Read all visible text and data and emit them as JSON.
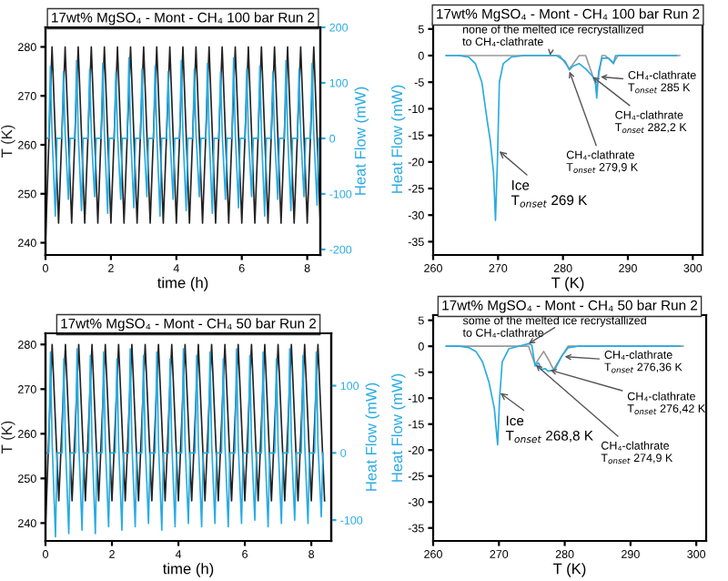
{
  "chart_data": [
    {
      "type": "line",
      "title": "17wt% MgSO₄ - Mont - CH₄ 100 bar Run 2",
      "xlabel": "time (h)",
      "ylabel": "T (K)",
      "y2label": "Heat Flow (mW)",
      "xlim": [
        0,
        8.4
      ],
      "xticks": [
        0,
        2,
        4,
        6,
        8
      ],
      "ylim": [
        237.5,
        284
      ],
      "yticks": [
        240,
        250,
        260,
        270,
        280
      ],
      "y2lim": [
        -210,
        200
      ],
      "y2ticks": [
        -200,
        -100,
        0,
        100,
        200
      ],
      "grid": false,
      "legend": false,
      "series": [
        {
          "color": "#222222",
          "x": [
            0,
            0.2,
            0.4,
            0.6,
            0.8,
            1.0,
            1.2,
            1.4,
            1.6,
            1.8,
            2.0,
            2.2,
            2.4,
            2.6,
            2.8,
            3.0,
            3.2,
            3.4,
            3.6,
            3.8,
            4.0,
            4.2,
            4.4,
            4.6,
            4.8,
            5.0,
            5.2,
            5.4,
            5.6,
            5.8,
            6.0,
            6.2,
            6.4,
            6.6,
            6.8,
            7.0,
            7.2,
            7.4,
            7.6,
            7.8,
            8.0,
            8.2,
            8.4
          ],
          "values": [
            240,
            280,
            244,
            280,
            244,
            280,
            244,
            280,
            244,
            280,
            244,
            280,
            244,
            280,
            244,
            280,
            244,
            280,
            244,
            280,
            244,
            280,
            244,
            280,
            244,
            280,
            244,
            280,
            244,
            280,
            244,
            280,
            244,
            280,
            244,
            280,
            244,
            280,
            244,
            280,
            244,
            280,
            244
          ]
        },
        {
          "color": "#29abe2",
          "axis": "y2",
          "x": [
            0,
            0.1,
            0.15,
            0.2,
            0.3,
            0.35,
            0.5,
            0.55,
            0.6,
            0.7,
            0.75,
            0.9,
            0.95,
            1.0,
            1.1,
            1.15,
            1.3,
            1.35,
            1.4,
            1.5,
            1.55,
            1.7,
            1.75,
            1.8,
            1.9,
            1.95,
            2.1,
            2.15,
            2.2,
            2.3,
            2.35,
            2.5,
            2.55,
            2.6,
            2.7,
            2.75,
            2.9,
            2.95,
            3.0,
            3.1,
            3.15,
            3.3,
            3.35,
            3.4,
            3.5,
            3.55,
            3.7,
            3.75,
            3.8,
            3.9,
            3.95,
            4.1,
            4.15,
            4.2,
            4.3,
            4.35,
            4.5,
            4.55,
            4.6,
            4.7,
            4.75,
            4.9,
            4.95,
            5.0,
            5.1,
            5.15,
            5.3,
            5.35,
            5.4,
            5.5,
            5.55,
            5.7,
            5.75,
            5.8,
            5.9,
            5.95,
            6.1,
            6.15,
            6.2,
            6.3,
            6.35,
            6.5,
            6.55,
            6.6,
            6.7,
            6.75,
            6.9,
            6.95,
            7.0,
            7.1,
            7.15,
            7.3,
            7.35,
            7.4,
            7.5,
            7.55,
            7.7,
            7.75,
            7.8,
            7.9,
            7.95,
            8.1,
            8.15,
            8.2,
            8.3,
            8.35
          ],
          "values": [
            0,
            0,
            130,
            10,
            -140,
            0,
            0,
            120,
            10,
            -110,
            0,
            0,
            140,
            10,
            -130,
            0,
            0,
            125,
            10,
            -105,
            0,
            0,
            135,
            10,
            -135,
            0,
            0,
            120,
            10,
            -110,
            0,
            0,
            145,
            10,
            -125,
            0,
            0,
            125,
            10,
            -105,
            0,
            0,
            130,
            10,
            -140,
            0,
            0,
            120,
            10,
            -110,
            0,
            0,
            140,
            10,
            -130,
            0,
            0,
            125,
            10,
            -105,
            0,
            0,
            135,
            10,
            -135,
            0,
            0,
            120,
            10,
            -110,
            0,
            0,
            145,
            10,
            -125,
            0,
            0,
            125,
            10,
            -105,
            0,
            0,
            130,
            10,
            -140,
            0,
            0,
            120,
            10,
            -110,
            0,
            0,
            140,
            10,
            -130,
            0,
            0,
            125,
            10,
            -105,
            0,
            0,
            135,
            10,
            -120,
            0
          ]
        }
      ]
    },
    {
      "type": "line",
      "title": "17wt% MgSO₄ - Mont - CH₄ 100 bar Run 2",
      "xlabel": "T (K)",
      "ylabel": "Heat Flow (mW)",
      "xlim": [
        260,
        301.5
      ],
      "xticks": [
        260,
        270,
        280,
        290,
        300
      ],
      "ylim": [
        -37.5,
        6
      ],
      "yticks": [
        5,
        0,
        -5,
        -10,
        -15,
        -20,
        -25,
        -30,
        -35
      ],
      "grid": false,
      "legend": false,
      "series": [
        {
          "color": "#999999",
          "x": [
            262,
            279.5,
            281,
            282.5,
            283.5,
            285.2,
            286,
            286.5,
            287.8,
            288.5,
            298
          ],
          "values": [
            0,
            0,
            -2.5,
            0,
            0,
            -6,
            0,
            0,
            -1.3,
            0,
            0
          ]
        },
        {
          "color": "#29abe2",
          "x": [
            262,
            264,
            265.5,
            266.5,
            267.5,
            268.3,
            268.8,
            269.3,
            269.6,
            269.9,
            270.2,
            270.8,
            272,
            274,
            279,
            280.3,
            281,
            281.5,
            282.5,
            283.5,
            284.5,
            285,
            285.2,
            285.5,
            286,
            287,
            287.8,
            288.1,
            290,
            297.5
          ],
          "values": [
            0,
            0,
            -0.3,
            -1.5,
            -5,
            -12,
            -16,
            -22,
            -31,
            -20,
            -5,
            -1.5,
            -0.3,
            0,
            0,
            -1,
            -2.7,
            -2,
            -1.5,
            -2.5,
            -3.8,
            -5,
            -8,
            -3,
            -0.5,
            -0.5,
            -1.5,
            0,
            0,
            0
          ]
        }
      ],
      "annotations": [
        {
          "text": "none of the melted ice recrystallized\nto CH₄-clathrate",
          "x": 278,
          "y": 0
        },
        {
          "text": "Ice\nT$_{onset}$ 269 K",
          "x": 270.2,
          "y": -18
        },
        {
          "text": "CH₄-clathrate\nT$_{onset}$ 279,9 K",
          "x": 281,
          "y": -3
        },
        {
          "text": "CH₄-clathrate\nT$_{onset}$ 282,2 K",
          "x": 284.6,
          "y": -4
        },
        {
          "text": "CH₄-clathrate\nT$_{onset}$ 285 K",
          "x": 285.8,
          "y": -4
        }
      ]
    },
    {
      "type": "line",
      "title": "17wt% MgSO₄ - Mont - CH₄ 50 bar Run 2",
      "xlabel": "time (h)",
      "ylabel": "T (K)",
      "y2label": "Heat Flow (mW)",
      "xlim": [
        0,
        8.6
      ],
      "xticks": [
        0,
        2,
        4,
        6,
        8
      ],
      "ylim": [
        236,
        282.5
      ],
      "yticks": [
        240,
        250,
        260,
        270,
        280
      ],
      "y2lim": [
        -131,
        178
      ],
      "y2ticks": [
        -100,
        0,
        100
      ],
      "grid": false,
      "legend": false,
      "series": [
        {
          "color": "#222222",
          "x": [
            0,
            0.2,
            0.4,
            0.6,
            0.8,
            1.0,
            1.2,
            1.4,
            1.6,
            1.8,
            2.0,
            2.2,
            2.4,
            2.6,
            2.8,
            3.0,
            3.2,
            3.4,
            3.6,
            3.8,
            4.0,
            4.2,
            4.4,
            4.6,
            4.8,
            5.0,
            5.2,
            5.4,
            5.6,
            5.8,
            6.0,
            6.2,
            6.4,
            6.6,
            6.8,
            7.0,
            7.2,
            7.4,
            7.6,
            7.8,
            8.0,
            8.2,
            8.4
          ],
          "values": [
            239,
            280,
            245,
            280,
            245,
            280,
            245,
            280,
            245,
            280,
            245,
            280,
            245,
            280,
            245,
            280,
            245,
            280,
            245,
            280,
            245,
            280,
            245,
            280,
            245,
            280,
            245,
            280,
            245,
            280,
            245,
            280,
            245,
            280,
            245,
            280,
            245,
            280,
            245,
            280,
            245,
            280,
            245
          ]
        },
        {
          "color": "#29abe2",
          "axis": "y2",
          "x": [
            0,
            0.1,
            0.15,
            0.2,
            0.3,
            0.35,
            0.5,
            0.55,
            0.6,
            0.7,
            0.75,
            0.9,
            0.95,
            1.0,
            1.1,
            1.15,
            1.3,
            1.35,
            1.4,
            1.5,
            1.55,
            1.7,
            1.75,
            1.8,
            1.9,
            1.95,
            2.1,
            2.15,
            2.2,
            2.3,
            2.35,
            2.5,
            2.55,
            2.6,
            2.7,
            2.75,
            2.9,
            2.95,
            3.0,
            3.1,
            3.15,
            3.3,
            3.35,
            3.4,
            3.5,
            3.55,
            3.7,
            3.75,
            3.8,
            3.9,
            3.95,
            4.1,
            4.15,
            4.2,
            4.3,
            4.35,
            4.5,
            4.55,
            4.6,
            4.7,
            4.75,
            4.9,
            4.95,
            5.0,
            5.1,
            5.15,
            5.3,
            5.35,
            5.4,
            5.5,
            5.55,
            5.7,
            5.75,
            5.8,
            5.9,
            5.95,
            6.1,
            6.15,
            6.2,
            6.3,
            6.35,
            6.5,
            6.55,
            6.6,
            6.7,
            6.75,
            6.9,
            6.95,
            7.0,
            7.1,
            7.15,
            7.3,
            7.35,
            7.4,
            7.5,
            7.55,
            7.7,
            7.75,
            7.8,
            7.9,
            7.95,
            8.1,
            8.15,
            8.2,
            8.3,
            8.35
          ],
          "values": [
            0,
            0,
            150,
            15,
            -125,
            0,
            0,
            140,
            15,
            -120,
            0,
            0,
            155,
            15,
            -115,
            0,
            0,
            145,
            15,
            -120,
            0,
            0,
            150,
            15,
            -110,
            0,
            0,
            140,
            15,
            -115,
            0,
            0,
            155,
            15,
            -110,
            0,
            0,
            145,
            15,
            -105,
            0,
            0,
            150,
            15,
            -115,
            0,
            0,
            140,
            15,
            -110,
            0,
            0,
            155,
            15,
            -105,
            0,
            0,
            145,
            15,
            -110,
            0,
            0,
            150,
            15,
            -105,
            0,
            0,
            140,
            15,
            -110,
            0,
            0,
            155,
            15,
            -105,
            0,
            0,
            145,
            15,
            -100,
            0,
            0,
            150,
            15,
            -110,
            0,
            0,
            140,
            15,
            -105,
            0,
            0,
            155,
            15,
            -100,
            0,
            0,
            145,
            15,
            -105,
            0,
            0,
            150,
            15,
            -95,
            0
          ]
        }
      ]
    },
    {
      "type": "line",
      "title": "17wt% MgSO₄ - Mont - CH₄ 50 bar Run 2",
      "xlabel": "T (K)",
      "ylabel": "Heat Flow (mW)",
      "xlim": [
        260,
        301.5
      ],
      "xticks": [
        260,
        270,
        280,
        290,
        300
      ],
      "ylim": [
        -37.5,
        6
      ],
      "yticks": [
        5,
        0,
        -5,
        -10,
        -15,
        -20,
        -25,
        -30,
        -35
      ],
      "grid": false,
      "legend": false,
      "series": [
        {
          "color": "#999999",
          "x": [
            262,
            274.5,
            275.5,
            276.8,
            277.5,
            278.3,
            279.5,
            280.5,
            298
          ],
          "values": [
            0,
            0,
            -3.5,
            -1,
            -2.5,
            -4.5,
            -2,
            0,
            0
          ]
        },
        {
          "color": "#29abe2",
          "x": [
            262,
            264,
            265.5,
            266.5,
            267.5,
            268.5,
            269.3,
            269.8,
            270.1,
            270.5,
            271.5,
            273,
            274.5,
            275,
            275.5,
            276,
            276.5,
            277,
            277.5,
            278.5,
            279.5,
            280.5,
            282,
            297.5
          ],
          "values": [
            0,
            0,
            -0.3,
            -1,
            -3,
            -7,
            -12,
            -19,
            -10,
            -3,
            -0.5,
            0,
            0.5,
            0.2,
            -3.8,
            -3.2,
            -4.5,
            -4.3,
            -4.8,
            -4.5,
            -2,
            -0.3,
            0,
            0
          ]
        }
      ],
      "annotations": [
        {
          "text": "some of the melted ice recrystallized\nto CH₄-clathrate",
          "x": 274.5,
          "y": 0.5
        },
        {
          "text": "Ice\nT$_{onset}$ 268,8 K",
          "x": 270.2,
          "y": -9
        },
        {
          "text": "CH₄-clathrate\nT$_{onset}$ 276,36 K",
          "x": 280,
          "y": -2
        },
        {
          "text": "CH₄-clathrate\nT$_{onset}$ 276,42 K",
          "x": 277.8,
          "y": -4.6
        },
        {
          "text": "CH₄-clathrate\nT$_{onset}$ 274,9 K",
          "x": 275.6,
          "y": -3.6
        }
      ]
    }
  ]
}
